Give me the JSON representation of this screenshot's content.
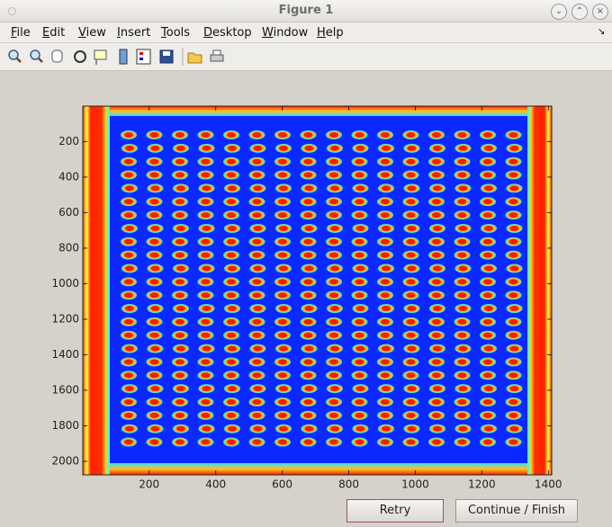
{
  "window": {
    "title": "Figure 1"
  },
  "menu": [
    "File",
    "Edit",
    "View",
    "Insert",
    "Tools",
    "Desktop",
    "Window",
    "Help"
  ],
  "axes": {
    "xlim": [
      0.5,
      1410
    ],
    "ylim": [
      0.5,
      2076
    ],
    "xticks": [
      200,
      400,
      600,
      800,
      1000,
      1200,
      1400
    ],
    "yticks": [
      200,
      400,
      600,
      800,
      1000,
      1200,
      1400,
      1600,
      1800,
      2000
    ]
  },
  "buttons": [
    "Retry",
    "Continue / Finish"
  ]
}
